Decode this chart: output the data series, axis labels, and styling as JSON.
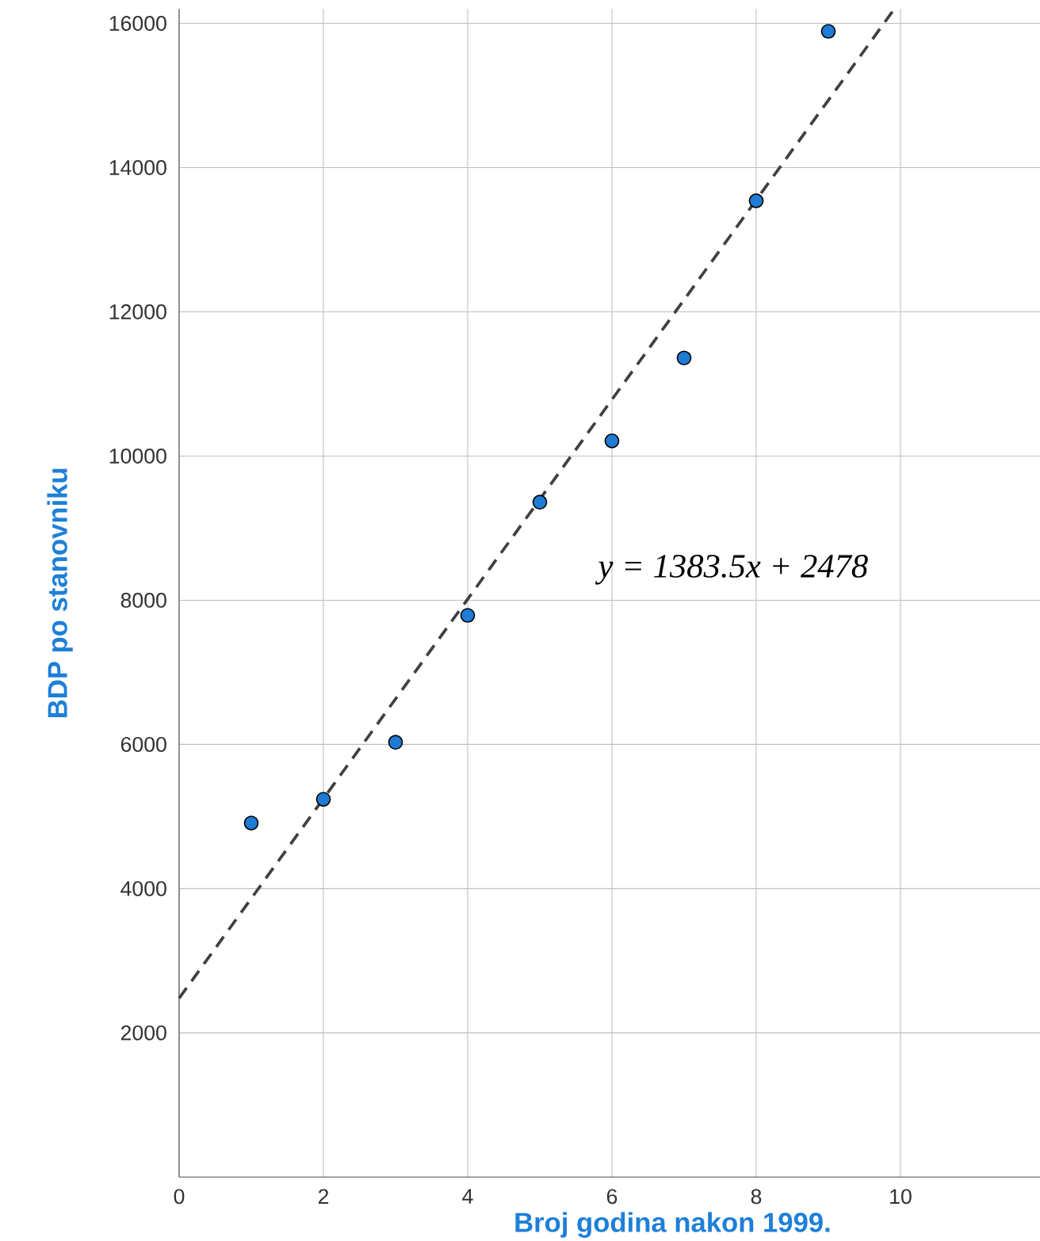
{
  "chart_data": {
    "type": "scatter",
    "xlabel": "Broj godina nakon 1999.",
    "ylabel": "BDP po stanovniku",
    "xlim": [
      0,
      12
    ],
    "xticks": [
      0,
      2,
      4,
      6,
      8,
      10,
      {
        "value": 12,
        "label": null
      }
    ],
    "ylim": [
      0,
      16200
    ],
    "yticks": [
      2000,
      4000,
      6000,
      8000,
      10000,
      12000,
      14000,
      16000
    ],
    "grid": true,
    "series": [
      {
        "color": "#1f7bd4",
        "marker": "circle",
        "x": [
          1,
          2,
          3,
          4,
          5,
          6,
          7,
          8,
          9
        ],
        "values": [
          4910,
          5240,
          6030,
          7790,
          9360,
          10210,
          11360,
          13540,
          15890
        ]
      },
      {
        "type": "line",
        "color": "#404040",
        "line_style": "dashed",
        "marker": "none",
        "x": [
          0,
          9.9
        ],
        "values": [
          2480,
          16180
        ]
      }
    ],
    "annotations": [
      "y = 1383.5x + 2478"
    ]
  }
}
